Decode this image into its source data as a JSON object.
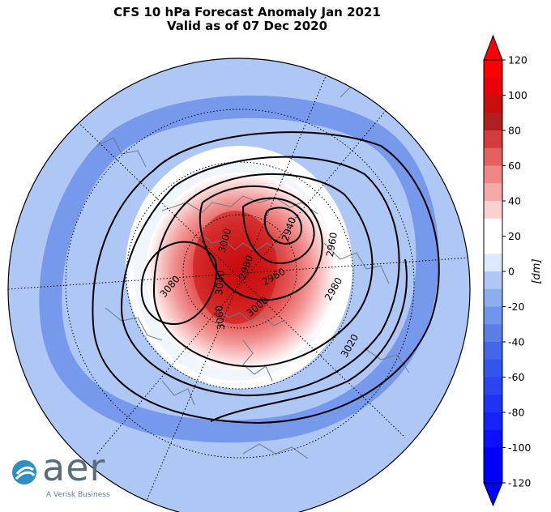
{
  "title": "CFS 10 hPa Forecast Anomaly Jan 2021",
  "subtitle": "Valid as of 07 Dec 2020",
  "colorbar": {
    "unit": "[dm]",
    "ticks": [
      "120",
      "100",
      "80",
      "60",
      "40",
      "20",
      "0",
      "-20",
      "-40",
      "-60",
      "-80",
      "-100",
      "-120"
    ],
    "colors": [
      "#ff0000",
      "#e8000b",
      "#c80e0e",
      "#b02020",
      "#d43c3c",
      "#e56060",
      "#ee8686",
      "#f5aaaa",
      "#fbd0d0",
      "#ffffff",
      "#ffffff",
      "#dce8fb",
      "#aec7f4",
      "#8aaeef",
      "#6f96ea",
      "#5a7ee6",
      "#4466e8",
      "#3355ee",
      "#2a44f0",
      "#1f33f4",
      "#1522f8",
      "#0a11fb",
      "#0000ff",
      "#0000ff"
    ]
  },
  "contours": {
    "labels": [
      {
        "text": "3000",
        "rot": -75
      },
      {
        "text": "2940",
        "rot": -70
      },
      {
        "text": "2960",
        "rot": -80
      },
      {
        "text": "3040",
        "rot": -85
      },
      {
        "text": "2980",
        "rot": -70
      },
      {
        "text": "2960",
        "rot": -30
      },
      {
        "text": "3080",
        "rot": -50
      },
      {
        "text": "3060",
        "rot": -95
      },
      {
        "text": "2980",
        "rot": -60
      },
      {
        "text": "3000",
        "rot": -40
      },
      {
        "text": "3020",
        "rot": -60
      }
    ]
  },
  "logo": {
    "word": "aer",
    "tagline": "A Verisk Business",
    "colors": {
      "teal": "#2f8fc3",
      "gray": "#5a6d7c"
    }
  },
  "colors": {
    "background_anomaly": "#aec7f4",
    "ring_anomaly": "#6f96ea",
    "land_outline": "#6b7b88"
  }
}
